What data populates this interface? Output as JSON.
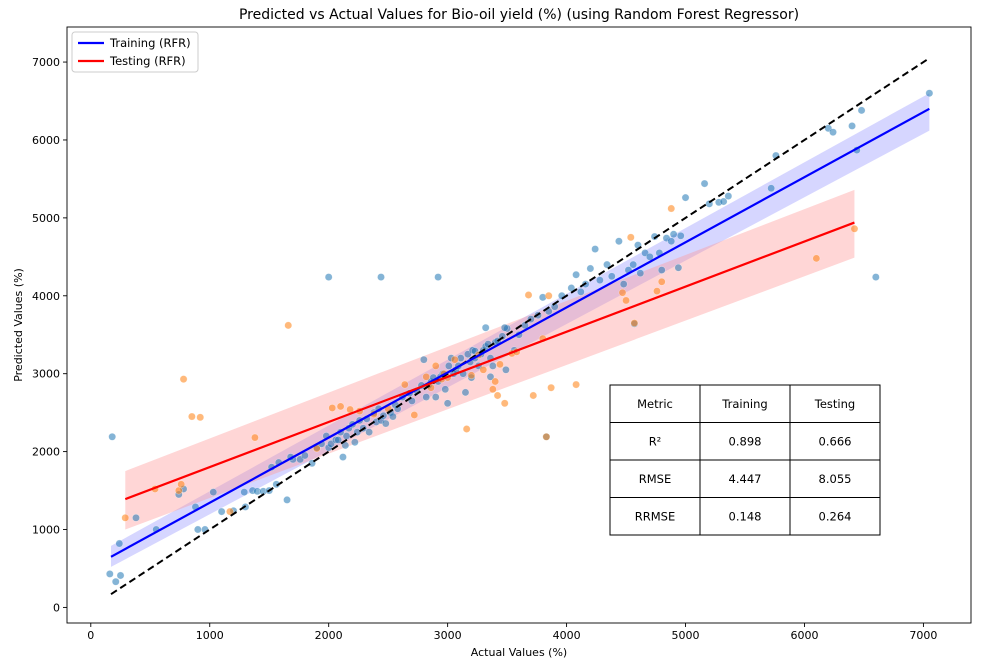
{
  "chart_data": {
    "type": "scatter",
    "title": "Predicted vs Actual Values for Bio-oil yield (%) (using Random Forest Regressor)",
    "xlabel": "Actual Values (%)",
    "ylabel": "Predicted Values (%)",
    "xlim": [
      -200,
      7400
    ],
    "ylim": [
      -200,
      7450
    ],
    "xticks": [
      0,
      1000,
      2000,
      3000,
      4000,
      5000,
      6000,
      7000
    ],
    "yticks": [
      0,
      1000,
      2000,
      3000,
      4000,
      5000,
      6000,
      7000
    ],
    "grid": false,
    "legend_position": "top-left",
    "colors": {
      "training_points": "#1f77b4",
      "testing_points": "#ff7f0e",
      "training_line": "#0000ff",
      "testing_line": "#ff0000",
      "training_band": "#9999ff",
      "testing_band": "#ff9999",
      "identity_line": "#000000"
    },
    "identity_line": {
      "x": [
        170,
        7050
      ],
      "y": [
        170,
        7050
      ]
    },
    "regression_lines": [
      {
        "name": "Training (RFR)",
        "x": [
          170,
          7050
        ],
        "y": [
          650,
          6400
        ],
        "band_lower": [
          520,
          6120
        ],
        "band_upper": [
          790,
          6600
        ]
      },
      {
        "name": "Testing (RFR)",
        "x": [
          290,
          6420
        ],
        "y": [
          1390,
          4940
        ],
        "band_lower": [
          1000,
          4490
        ],
        "band_upper": [
          1750,
          5360
        ]
      }
    ],
    "series": [
      {
        "role": "training",
        "points": [
          [
            160,
            430
          ],
          [
            210,
            330
          ],
          [
            250,
            410
          ],
          [
            240,
            820
          ],
          [
            180,
            2190
          ],
          [
            380,
            1150
          ],
          [
            550,
            1000
          ],
          [
            740,
            1450
          ],
          [
            780,
            1520
          ],
          [
            880,
            1290
          ],
          [
            900,
            1000
          ],
          [
            960,
            1000
          ],
          [
            1030,
            1480
          ],
          [
            1100,
            1230
          ],
          [
            1200,
            1240
          ],
          [
            1290,
            1480
          ],
          [
            1300,
            1290
          ],
          [
            1360,
            1500
          ],
          [
            1400,
            1490
          ],
          [
            1450,
            1490
          ],
          [
            1500,
            1500
          ],
          [
            1520,
            1800
          ],
          [
            1560,
            1580
          ],
          [
            1580,
            1860
          ],
          [
            1650,
            1380
          ],
          [
            1700,
            1900
          ],
          [
            1760,
            1900
          ],
          [
            1800,
            1950
          ],
          [
            1860,
            1850
          ],
          [
            1900,
            2050
          ],
          [
            1940,
            2100
          ],
          [
            1980,
            2200
          ],
          [
            2000,
            2050
          ],
          [
            2020,
            2100
          ],
          [
            2060,
            2150
          ],
          [
            2080,
            2150
          ],
          [
            2100,
            2250
          ],
          [
            2140,
            2080
          ],
          [
            2150,
            2200
          ],
          [
            2170,
            2300
          ],
          [
            2200,
            2350
          ],
          [
            2220,
            2120
          ],
          [
            2240,
            2250
          ],
          [
            2260,
            2400
          ],
          [
            2290,
            2300
          ],
          [
            2320,
            2420
          ],
          [
            2340,
            2250
          ],
          [
            2380,
            2500
          ],
          [
            2400,
            2380
          ],
          [
            2420,
            2550
          ],
          [
            2440,
            2400
          ],
          [
            2460,
            2460
          ],
          [
            2480,
            2360
          ],
          [
            2520,
            2500
          ],
          [
            2540,
            2450
          ],
          [
            2560,
            2600
          ],
          [
            2580,
            2550
          ],
          [
            2620,
            2700
          ],
          [
            2680,
            2750
          ],
          [
            2700,
            2650
          ],
          [
            2740,
            2780
          ],
          [
            2780,
            2850
          ],
          [
            2800,
            3180
          ],
          [
            2820,
            2700
          ],
          [
            2840,
            2850
          ],
          [
            2860,
            2900
          ],
          [
            2880,
            2950
          ],
          [
            2900,
            2700
          ],
          [
            2920,
            2900
          ],
          [
            2940,
            2960
          ],
          [
            2960,
            3000
          ],
          [
            2980,
            2800
          ],
          [
            3000,
            2620
          ],
          [
            3010,
            3100
          ],
          [
            3030,
            3200
          ],
          [
            3050,
            3000
          ],
          [
            3070,
            3050
          ],
          [
            3090,
            3100
          ],
          [
            3110,
            3200
          ],
          [
            3130,
            3000
          ],
          [
            3150,
            2760
          ],
          [
            3170,
            3250
          ],
          [
            3190,
            3150
          ],
          [
            3210,
            3300
          ],
          [
            3230,
            3200
          ],
          [
            3260,
            3100
          ],
          [
            3280,
            3250
          ],
          [
            3300,
            3300
          ],
          [
            3320,
            3350
          ],
          [
            3340,
            3380
          ],
          [
            3360,
            3200
          ],
          [
            3380,
            3100
          ],
          [
            3400,
            3400
          ],
          [
            3420,
            3420
          ],
          [
            3460,
            3480
          ],
          [
            3500,
            3580
          ],
          [
            3560,
            3300
          ],
          [
            3600,
            3500
          ],
          [
            3650,
            3620
          ],
          [
            3700,
            3700
          ],
          [
            3760,
            3750
          ],
          [
            3800,
            3980
          ],
          [
            3850,
            3800
          ],
          [
            3900,
            3860
          ],
          [
            3960,
            4000
          ],
          [
            4040,
            4100
          ],
          [
            4080,
            4270
          ],
          [
            4120,
            4050
          ],
          [
            4160,
            4150
          ],
          [
            4200,
            4350
          ],
          [
            4240,
            4600
          ],
          [
            4280,
            4200
          ],
          [
            4340,
            4400
          ],
          [
            4380,
            4250
          ],
          [
            4440,
            4700
          ],
          [
            4480,
            4150
          ],
          [
            4520,
            4330
          ],
          [
            4560,
            4400
          ],
          [
            4600,
            4650
          ],
          [
            4620,
            4290
          ],
          [
            4660,
            4550
          ],
          [
            4700,
            4500
          ],
          [
            4740,
            4760
          ],
          [
            4780,
            4550
          ],
          [
            4800,
            4330
          ],
          [
            4840,
            4740
          ],
          [
            4880,
            4700
          ],
          [
            4900,
            4790
          ],
          [
            4940,
            4360
          ],
          [
            4960,
            4770
          ],
          [
            5000,
            5260
          ],
          [
            5160,
            5440
          ],
          [
            5200,
            5180
          ],
          [
            5280,
            5200
          ],
          [
            5320,
            5210
          ],
          [
            5360,
            5280
          ],
          [
            5720,
            5380
          ],
          [
            5760,
            5800
          ],
          [
            6200,
            6150
          ],
          [
            6240,
            6100
          ],
          [
            6400,
            6180
          ],
          [
            6440,
            5870
          ],
          [
            6480,
            6380
          ],
          [
            7050,
            6600
          ],
          [
            2000,
            4240
          ],
          [
            2440,
            4240
          ],
          [
            2920,
            4240
          ],
          [
            6600,
            4240
          ],
          [
            3320,
            3590
          ],
          [
            3480,
            3590
          ],
          [
            3490,
            3050
          ],
          [
            4570,
            3640
          ],
          [
            1680,
            1930
          ],
          [
            2120,
            1930
          ],
          [
            3200,
            2950
          ],
          [
            3360,
            2960
          ],
          [
            3230,
            3290
          ],
          [
            3830,
            2190
          ]
        ]
      },
      {
        "role": "testing",
        "points": [
          [
            290,
            1150
          ],
          [
            540,
            1520
          ],
          [
            740,
            1500
          ],
          [
            760,
            1580
          ],
          [
            780,
            2930
          ],
          [
            850,
            2450
          ],
          [
            920,
            2440
          ],
          [
            1170,
            1230
          ],
          [
            1380,
            2180
          ],
          [
            1660,
            3620
          ],
          [
            1900,
            2040
          ],
          [
            2030,
            2560
          ],
          [
            2100,
            2580
          ],
          [
            2180,
            2540
          ],
          [
            2260,
            2520
          ],
          [
            2380,
            2480
          ],
          [
            2500,
            2550
          ],
          [
            2640,
            2860
          ],
          [
            2720,
            2470
          ],
          [
            2820,
            2960
          ],
          [
            2860,
            2820
          ],
          [
            2900,
            3100
          ],
          [
            2950,
            2930
          ],
          [
            2970,
            3000
          ],
          [
            3000,
            2950
          ],
          [
            3060,
            3180
          ],
          [
            3160,
            2290
          ],
          [
            3200,
            2980
          ],
          [
            3260,
            3240
          ],
          [
            3300,
            3050
          ],
          [
            3380,
            2800
          ],
          [
            3400,
            2900
          ],
          [
            3420,
            2720
          ],
          [
            3440,
            3120
          ],
          [
            3480,
            2620
          ],
          [
            3540,
            3260
          ],
          [
            3580,
            3280
          ],
          [
            3680,
            4010
          ],
          [
            3720,
            2720
          ],
          [
            3800,
            3450
          ],
          [
            3830,
            2190
          ],
          [
            3850,
            4000
          ],
          [
            3870,
            2820
          ],
          [
            4080,
            2860
          ],
          [
            4470,
            4040
          ],
          [
            4500,
            3940
          ],
          [
            4540,
            4750
          ],
          [
            4570,
            3650
          ],
          [
            4760,
            4060
          ],
          [
            4800,
            4180
          ],
          [
            4880,
            5120
          ],
          [
            6100,
            4480
          ],
          [
            6420,
            4860
          ]
        ]
      }
    ],
    "legend": [
      {
        "label": "Training (RFR)",
        "color": "#0000ff"
      },
      {
        "label": "Testing (RFR)",
        "color": "#ff0000"
      }
    ],
    "metrics_table": {
      "headers": [
        "Metric",
        "Training",
        "Testing"
      ],
      "rows": [
        [
          "R²",
          "0.898",
          "0.666"
        ],
        [
          "RMSE",
          "4.447",
          "8.055"
        ],
        [
          "RRMSE",
          "0.148",
          "0.264"
        ]
      ]
    }
  }
}
